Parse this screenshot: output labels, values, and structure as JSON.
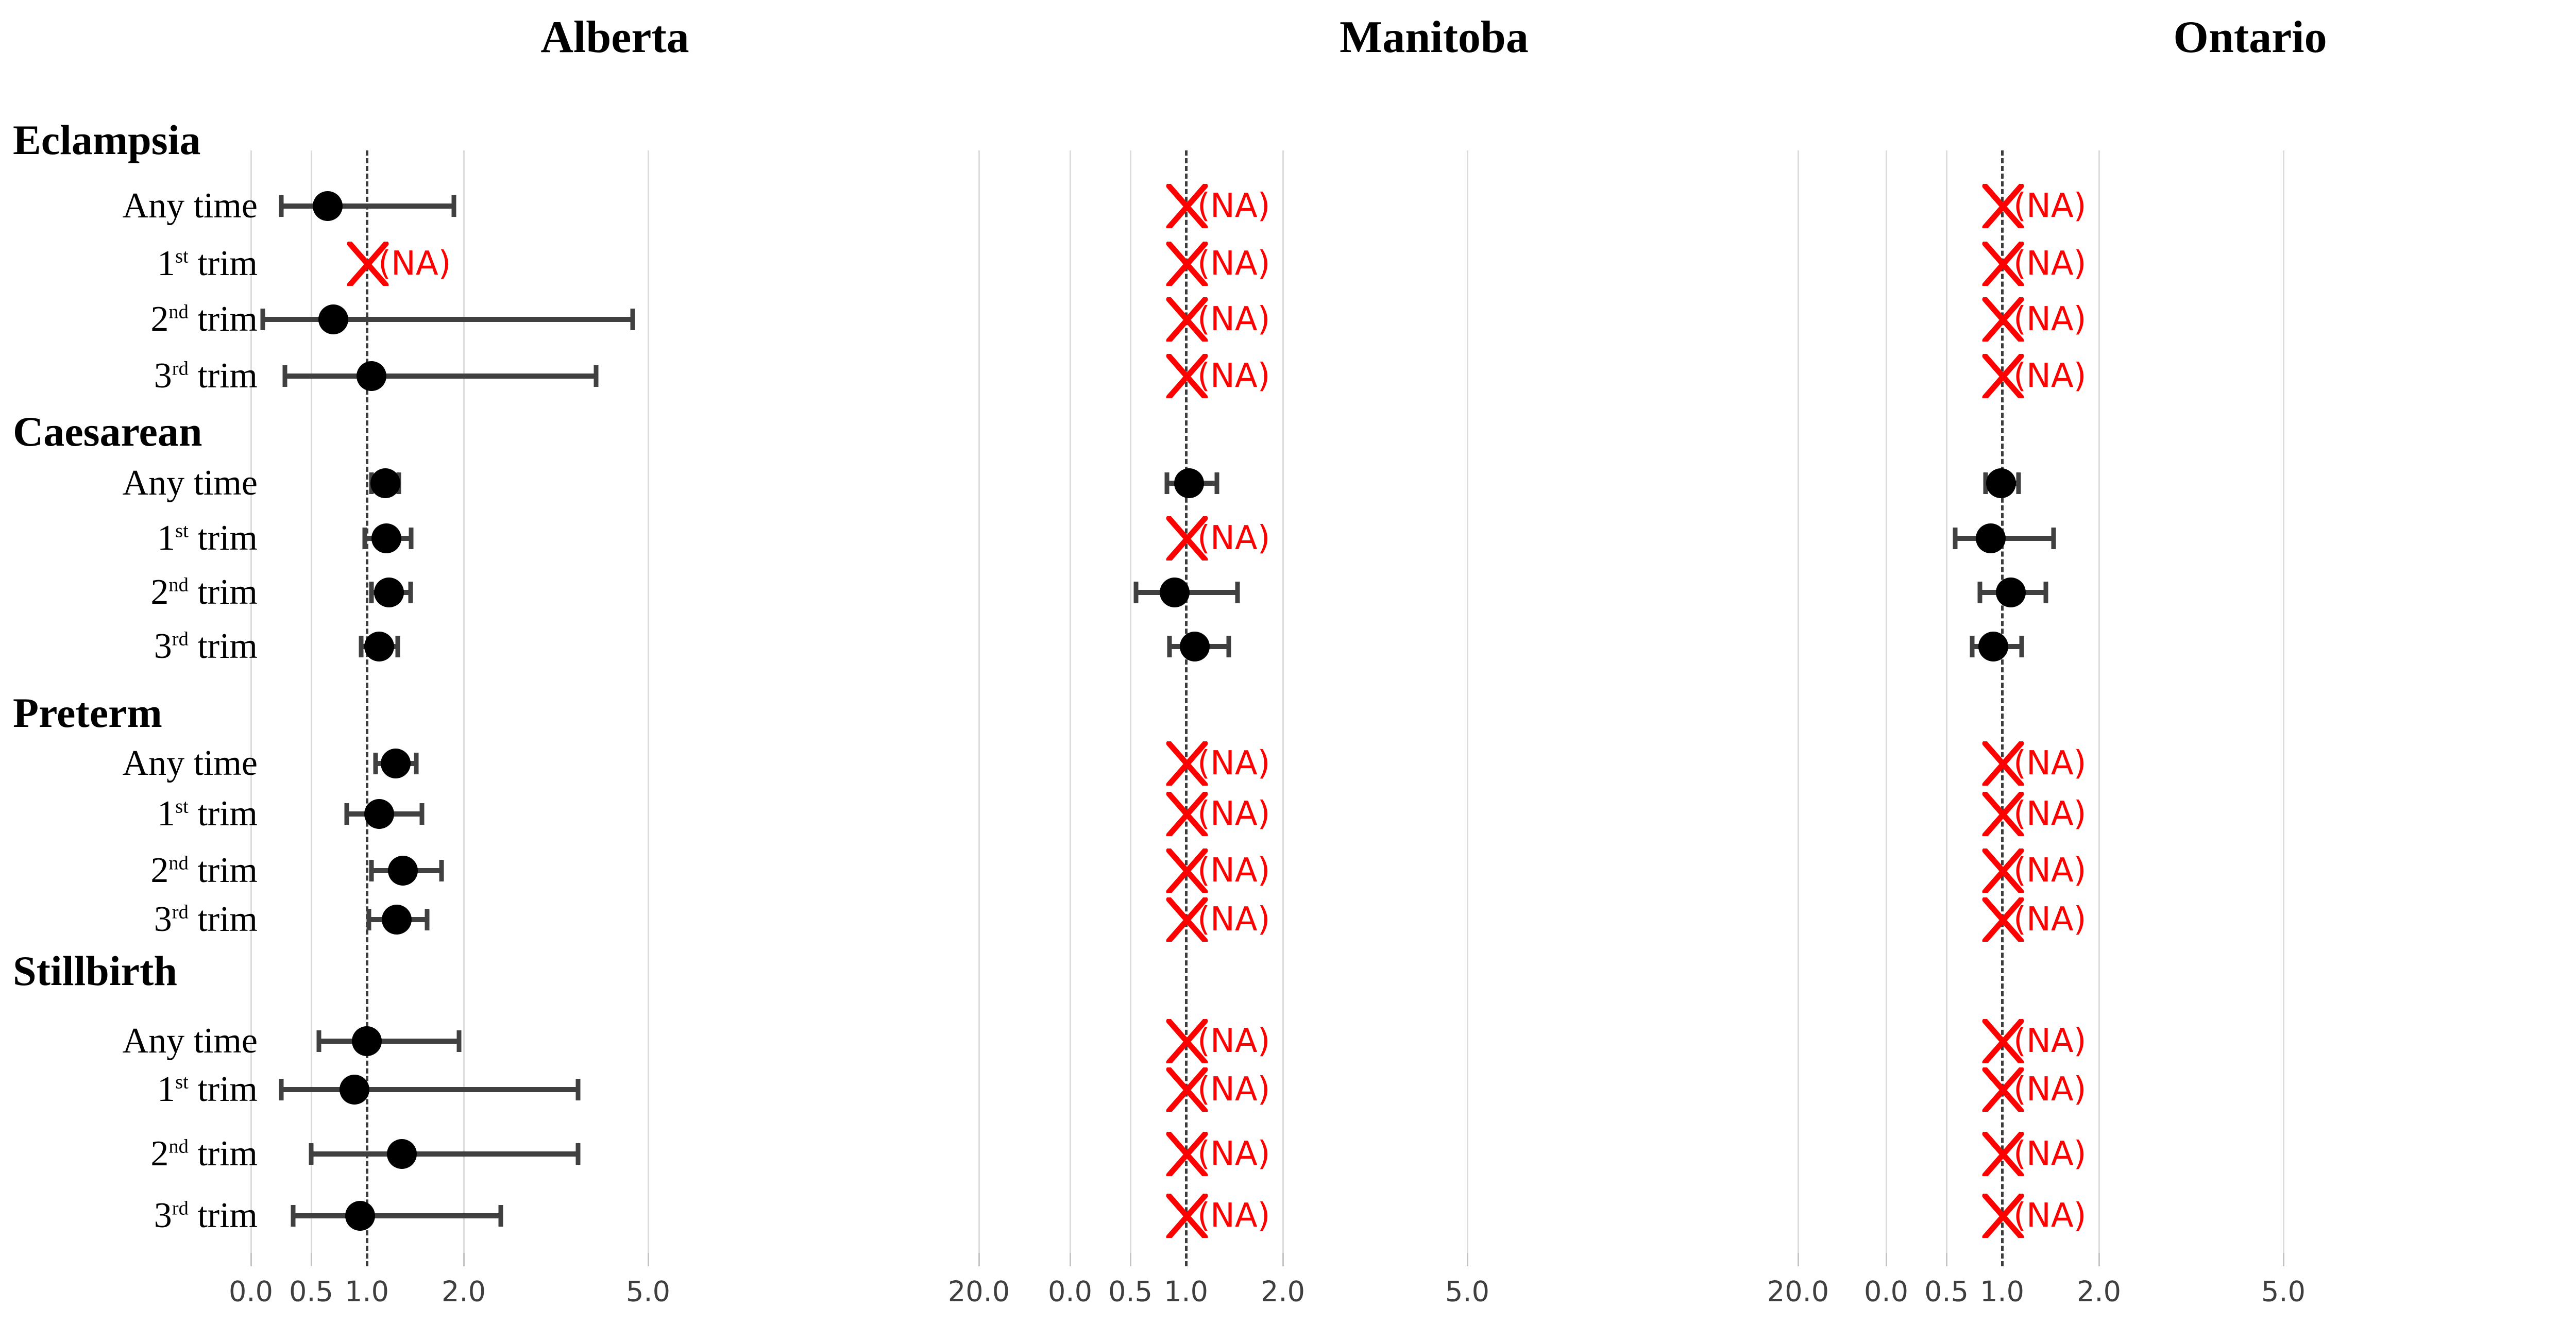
{
  "colors": {
    "na_red": "#ff0000",
    "point_black": "#000000",
    "whisker_gray": "#404040",
    "gridline_gray": "#dcdcdc",
    "reference_dash_gray": "#3c3c3c",
    "axis_text_gray": "#3f3f3f",
    "label_black": "#000000",
    "background": "#ffffff"
  },
  "chart_data": {
    "type": "forest",
    "title": "",
    "xlabel": "",
    "ylabel": "",
    "grid": true,
    "legend": "none",
    "na_label": "(NA)",
    "na_marker": "red-cross",
    "x_axis": {
      "tick_labels": [
        "0.0",
        "0.5",
        "1.0",
        "2.0",
        "5.0",
        "20.0"
      ],
      "tick_values": [
        0,
        0.5,
        1,
        2,
        5,
        20
      ],
      "reference_value": 1.0,
      "scale": "pseudo-log",
      "range": [
        0,
        20
      ]
    },
    "groups": [
      {
        "label": "Eclampsia",
        "rows": [
          "Any time",
          "1st trim",
          "2nd trim",
          "3rd trim"
        ]
      },
      {
        "label": "Caesarean",
        "rows": [
          "Any time",
          "1st trim",
          "2nd trim",
          "3rd trim"
        ]
      },
      {
        "label": "Preterm",
        "rows": [
          "Any time",
          "1st trim",
          "2nd trim",
          "3rd trim"
        ]
      },
      {
        "label": "Stillbirth",
        "rows": [
          "Any time",
          "1st trim",
          "2nd trim",
          "3rd trim"
        ]
      }
    ],
    "panels": [
      {
        "title": "Alberta",
        "estimates": [
          [
            {
              "or": 0.65,
              "lo": 0.25,
              "hi": 1.9
            },
            null,
            {
              "or": 0.7,
              "lo": 0.1,
              "hi": 4.75
            },
            {
              "or": 1.05,
              "lo": 0.28,
              "hi": 4.15
            }
          ],
          [
            {
              "or": 1.19,
              "lo": 1.05,
              "hi": 1.33
            },
            {
              "or": 1.2,
              "lo": 0.98,
              "hi": 1.46
            },
            {
              "or": 1.23,
              "lo": 1.05,
              "hi": 1.45
            },
            {
              "or": 1.13,
              "lo": 0.95,
              "hi": 1.32
            }
          ],
          [
            {
              "or": 1.3,
              "lo": 1.09,
              "hi": 1.51
            },
            {
              "or": 1.13,
              "lo": 0.82,
              "hi": 1.57
            },
            {
              "or": 1.37,
              "lo": 1.05,
              "hi": 1.77
            },
            {
              "or": 1.31,
              "lo": 1.02,
              "hi": 1.62
            }
          ],
          [
            {
              "or": 1.0,
              "lo": 0.57,
              "hi": 1.95
            },
            {
              "or": 0.89,
              "lo": 0.25,
              "hi": 3.86
            },
            {
              "or": 1.36,
              "lo": 0.5,
              "hi": 3.86
            },
            {
              "or": 0.94,
              "lo": 0.35,
              "hi": 2.6
            }
          ]
        ]
      },
      {
        "title": "Manitoba",
        "estimates": [
          [
            null,
            null,
            null,
            null
          ],
          [
            {
              "or": 1.03,
              "lo": 0.83,
              "hi": 1.32
            },
            null,
            {
              "or": 0.9,
              "lo": 0.55,
              "hi": 1.53
            },
            {
              "or": 1.09,
              "lo": 0.85,
              "hi": 1.44
            }
          ],
          [
            null,
            null,
            null,
            null
          ],
          [
            null,
            null,
            null,
            null
          ]
        ]
      },
      {
        "title": "Ontario",
        "estimates": [
          [
            null,
            null,
            null,
            null
          ],
          [
            {
              "or": 0.99,
              "lo": 0.85,
              "hi": 1.17
            },
            {
              "or": 0.9,
              "lo": 0.58,
              "hi": 1.53
            },
            {
              "or": 1.09,
              "lo": 0.8,
              "hi": 1.45
            },
            {
              "or": 0.92,
              "lo": 0.73,
              "hi": 1.2
            }
          ],
          [
            null,
            null,
            null,
            null
          ],
          [
            null,
            null,
            null,
            null
          ]
        ]
      }
    ]
  }
}
